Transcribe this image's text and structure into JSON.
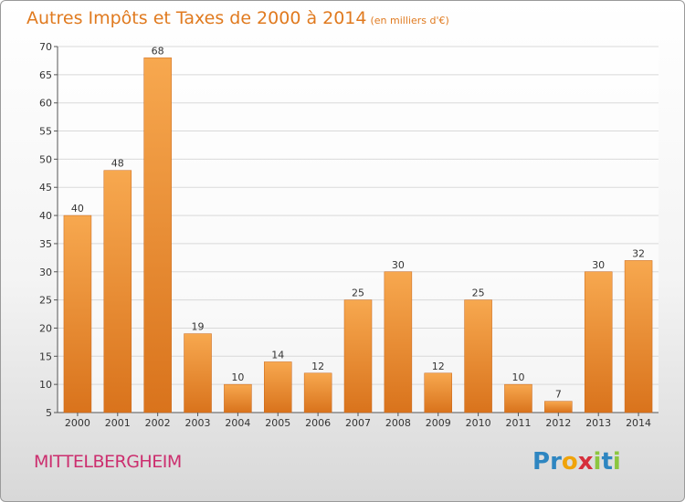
{
  "header": {
    "title": "Autres Impôts et Taxes de 2000 à 2014",
    "subtitle": "(en milliers d'€)"
  },
  "footer": {
    "place": "MITTELBERGHEIM",
    "logo_letters": [
      {
        "ch": "P",
        "color": "#2e86c1"
      },
      {
        "ch": "r",
        "color": "#2e86c1"
      },
      {
        "ch": "o",
        "color": "#f0a30a"
      },
      {
        "ch": "x",
        "color": "#d62f3c"
      },
      {
        "ch": "i",
        "color": "#8cc63f"
      },
      {
        "ch": "t",
        "color": "#2e86c1"
      },
      {
        "ch": "i",
        "color": "#8cc63f"
      }
    ]
  },
  "colors": {
    "bar_top": "#f7a84f",
    "bar_bottom": "#d9731c",
    "grid": "#d9d9d9",
    "axis_text": "#333333",
    "title": "#e07a1f",
    "place": "#cc2e6e"
  },
  "chart_data": {
    "type": "bar",
    "title": "Autres Impôts et Taxes de 2000 à 2014",
    "subtitle": "(en milliers d'€)",
    "xlabel": "",
    "ylabel": "",
    "categories": [
      "2000",
      "2001",
      "2002",
      "2003",
      "2004",
      "2005",
      "2006",
      "2007",
      "2008",
      "2009",
      "2010",
      "2011",
      "2012",
      "2013",
      "2014"
    ],
    "values": [
      40,
      48,
      68,
      19,
      10,
      14,
      12,
      25,
      30,
      12,
      25,
      10,
      7,
      30,
      32
    ],
    "ylim": [
      5,
      70
    ],
    "yticks": [
      5,
      10,
      15,
      20,
      25,
      30,
      35,
      40,
      45,
      50,
      55,
      60,
      65,
      70
    ],
    "grid": true,
    "data_labels": true
  }
}
